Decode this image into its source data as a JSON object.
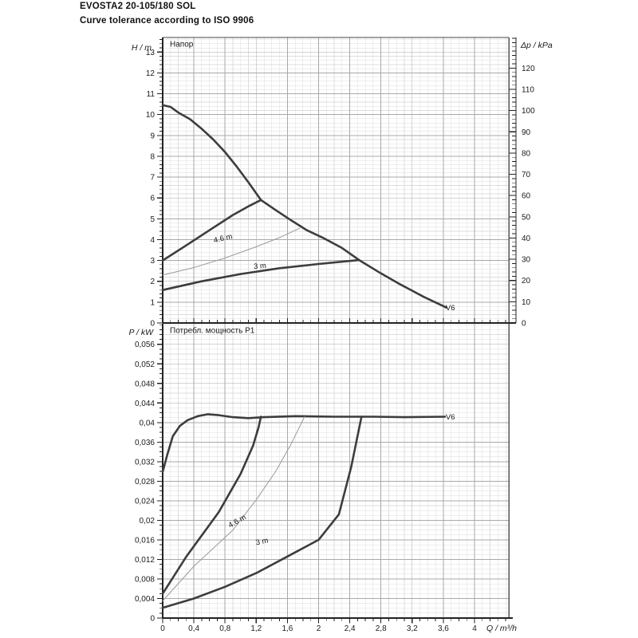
{
  "header": {
    "model": "EVOSTA2 20-105/180 SOL",
    "tolerance_note": "Curve tolerance according to ISO 9906"
  },
  "colors": {
    "curve_thick": "#3d3d3d",
    "curve_thin": "#9a9a9a",
    "grid_minor": "#dddddd",
    "grid_major": "#a9a9a9",
    "axis": "#222222",
    "frame": "#555555",
    "text": "#1a1a1a"
  },
  "chart_data": [
    {
      "type": "line",
      "title": "Напор",
      "ylabel": "H / m",
      "ylabel_right": "Δp / kPa",
      "xlabel": "",
      "xlim": [
        0,
        4.44
      ],
      "ylim": [
        0,
        13.7
      ],
      "ylim_right": [
        0,
        134.4
      ],
      "x_minor": 0.1,
      "y_minor": 0.2,
      "y_right_minor": 2,
      "x_ticks": {
        "values": [
          0,
          0.4,
          0.8,
          1.2,
          1.6,
          2,
          2.4,
          2.8,
          3.2,
          3.6,
          4
        ],
        "labels": [
          "0",
          "0,4",
          "0,8",
          "1,2",
          "1,6",
          "2",
          "2,4",
          "2,8",
          "3,2",
          "3,6",
          "4"
        ],
        "show_labels": false
      },
      "y_ticks": {
        "values": [
          0,
          1,
          2,
          3,
          4,
          5,
          6,
          7,
          8,
          9,
          10,
          11,
          12,
          13
        ],
        "labels": [
          "0",
          "1",
          "2",
          "3",
          "4",
          "5",
          "6",
          "7",
          "8",
          "9",
          "10",
          "11",
          "12",
          "13"
        ]
      },
      "y_right_ticks": {
        "values": [
          0,
          10,
          20,
          30,
          40,
          50,
          60,
          70,
          80,
          90,
          100,
          110,
          120
        ],
        "labels": [
          "0",
          "10",
          "20",
          "30",
          "40",
          "50",
          "60",
          "70",
          "80",
          "90",
          "100",
          "110",
          "120"
        ]
      },
      "series": [
        {
          "name": "max-speed-head-curve",
          "style": "thick",
          "points": [
            [
              0,
              10.45
            ],
            [
              0.1,
              10.37
            ],
            [
              0.2,
              10.1
            ],
            [
              0.35,
              9.78
            ],
            [
              0.5,
              9.32
            ],
            [
              0.65,
              8.8
            ],
            [
              0.8,
              8.2
            ],
            [
              0.95,
              7.5
            ],
            [
              1.1,
              6.75
            ],
            [
              1.26,
              5.9
            ],
            [
              1.45,
              5.42
            ],
            [
              1.65,
              4.92
            ],
            [
              1.85,
              4.45
            ],
            [
              2.05,
              4.1
            ],
            [
              2.3,
              3.6
            ],
            [
              2.52,
              3.02
            ],
            [
              2.8,
              2.38
            ],
            [
              3.05,
              1.85
            ],
            [
              3.35,
              1.25
            ],
            [
              3.64,
              0.74
            ]
          ]
        },
        {
          "name": "rise-head-curve",
          "style": "thick",
          "points": [
            [
              0,
              3.0
            ],
            [
              0.3,
              3.72
            ],
            [
              0.6,
              4.45
            ],
            [
              0.9,
              5.18
            ],
            [
              1.1,
              5.6
            ],
            [
              1.26,
              5.9
            ]
          ]
        },
        {
          "name": "head-curve-4-6-m",
          "style": "thin",
          "points": [
            [
              0,
              2.3
            ],
            [
              0.4,
              2.66
            ],
            [
              0.8,
              3.12
            ],
            [
              1.2,
              3.66
            ],
            [
              1.5,
              4.1
            ],
            [
              1.76,
              4.55
            ]
          ]
        },
        {
          "name": "head-curve-3-m",
          "style": "thick",
          "points": [
            [
              0,
              1.58
            ],
            [
              0.5,
              2.0
            ],
            [
              1.0,
              2.35
            ],
            [
              1.5,
              2.63
            ],
            [
              2.0,
              2.83
            ],
            [
              2.52,
              3.02
            ]
          ]
        }
      ],
      "annotations": [
        {
          "text": "V6",
          "x": 3.69,
          "y": 0.62,
          "rot": 0
        },
        {
          "text": "4.6 m",
          "x": 0.78,
          "y": 3.95,
          "rot": -13
        },
        {
          "text": "3 m",
          "x": 1.25,
          "y": 2.62,
          "rot": -4
        }
      ]
    },
    {
      "type": "line",
      "title": "Потребл. мощность P1",
      "ylabel": "P / kW",
      "xlabel": "Q / m³/h",
      "xlim": [
        0,
        4.44
      ],
      "ylim": [
        0,
        0.0602
      ],
      "x_minor": 0.1,
      "y_minor": 0.001,
      "x_ticks": {
        "values": [
          0,
          0.4,
          0.8,
          1.2,
          1.6,
          2,
          2.4,
          2.8,
          3.2,
          3.6,
          4
        ],
        "labels": [
          "0",
          "0,4",
          "0,8",
          "1,2",
          "1,6",
          "2",
          "2,4",
          "2,8",
          "3,2",
          "3,6",
          "4"
        ],
        "show_labels": true
      },
      "y_ticks": {
        "values": [
          0,
          0.004,
          0.008,
          0.012,
          0.016,
          0.02,
          0.024,
          0.028,
          0.032,
          0.036,
          0.04,
          0.044,
          0.048,
          0.052,
          0.056
        ],
        "labels": [
          "0",
          "0,004",
          "0,008",
          "0,012",
          "0,016",
          "0,02",
          "0,024",
          "0,028",
          "0,032",
          "0,036",
          "0,04",
          "0,044",
          "0,048",
          "0,052",
          "0,056"
        ]
      },
      "series": [
        {
          "name": "max-speed-power-curve",
          "style": "thick",
          "points": [
            [
              0,
              0.0299
            ],
            [
              0.06,
              0.0335
            ],
            [
              0.13,
              0.0372
            ],
            [
              0.22,
              0.0393
            ],
            [
              0.32,
              0.0405
            ],
            [
              0.45,
              0.0413
            ],
            [
              0.58,
              0.0417
            ],
            [
              0.72,
              0.0415
            ],
            [
              0.9,
              0.0411
            ],
            [
              1.1,
              0.0409
            ],
            [
              1.3,
              0.0411
            ],
            [
              1.7,
              0.0413
            ],
            [
              2.2,
              0.0412
            ],
            [
              2.7,
              0.0412
            ],
            [
              3.1,
              0.0411
            ],
            [
              3.62,
              0.0412
            ]
          ]
        },
        {
          "name": "rise-power-curve",
          "style": "thick",
          "points": [
            [
              0,
              0.005
            ],
            [
              0.3,
              0.0125
            ],
            [
              0.72,
              0.0217
            ],
            [
              1.0,
              0.0295
            ],
            [
              1.16,
              0.0353
            ],
            [
              1.23,
              0.039
            ],
            [
              1.26,
              0.0412
            ]
          ]
        },
        {
          "name": "power-curve-4-6-m",
          "style": "thin",
          "points": [
            [
              0,
              0.0035
            ],
            [
              0.4,
              0.0106
            ],
            [
              0.9,
              0.018
            ],
            [
              1.2,
              0.0242
            ],
            [
              1.45,
              0.03
            ],
            [
              1.65,
              0.0357
            ],
            [
              1.78,
              0.0399
            ],
            [
              1.82,
              0.0412
            ]
          ]
        },
        {
          "name": "power-curve-3-m",
          "style": "thick",
          "points": [
            [
              0,
              0.0021
            ],
            [
              0.4,
              0.004
            ],
            [
              0.8,
              0.0064
            ],
            [
              1.2,
              0.0092
            ],
            [
              1.6,
              0.0126
            ],
            [
              2.0,
              0.016
            ],
            [
              2.26,
              0.0212
            ],
            [
              2.42,
              0.031
            ],
            [
              2.55,
              0.0412
            ]
          ]
        }
      ],
      "annotations": [
        {
          "text": "V6",
          "x": 3.69,
          "y": 0.0406,
          "rot": 0
        },
        {
          "text": "4.6 m",
          "x": 0.97,
          "y": 0.0194,
          "rot": -30
        },
        {
          "text": "3 m",
          "x": 1.28,
          "y": 0.0152,
          "rot": -12
        }
      ]
    }
  ]
}
